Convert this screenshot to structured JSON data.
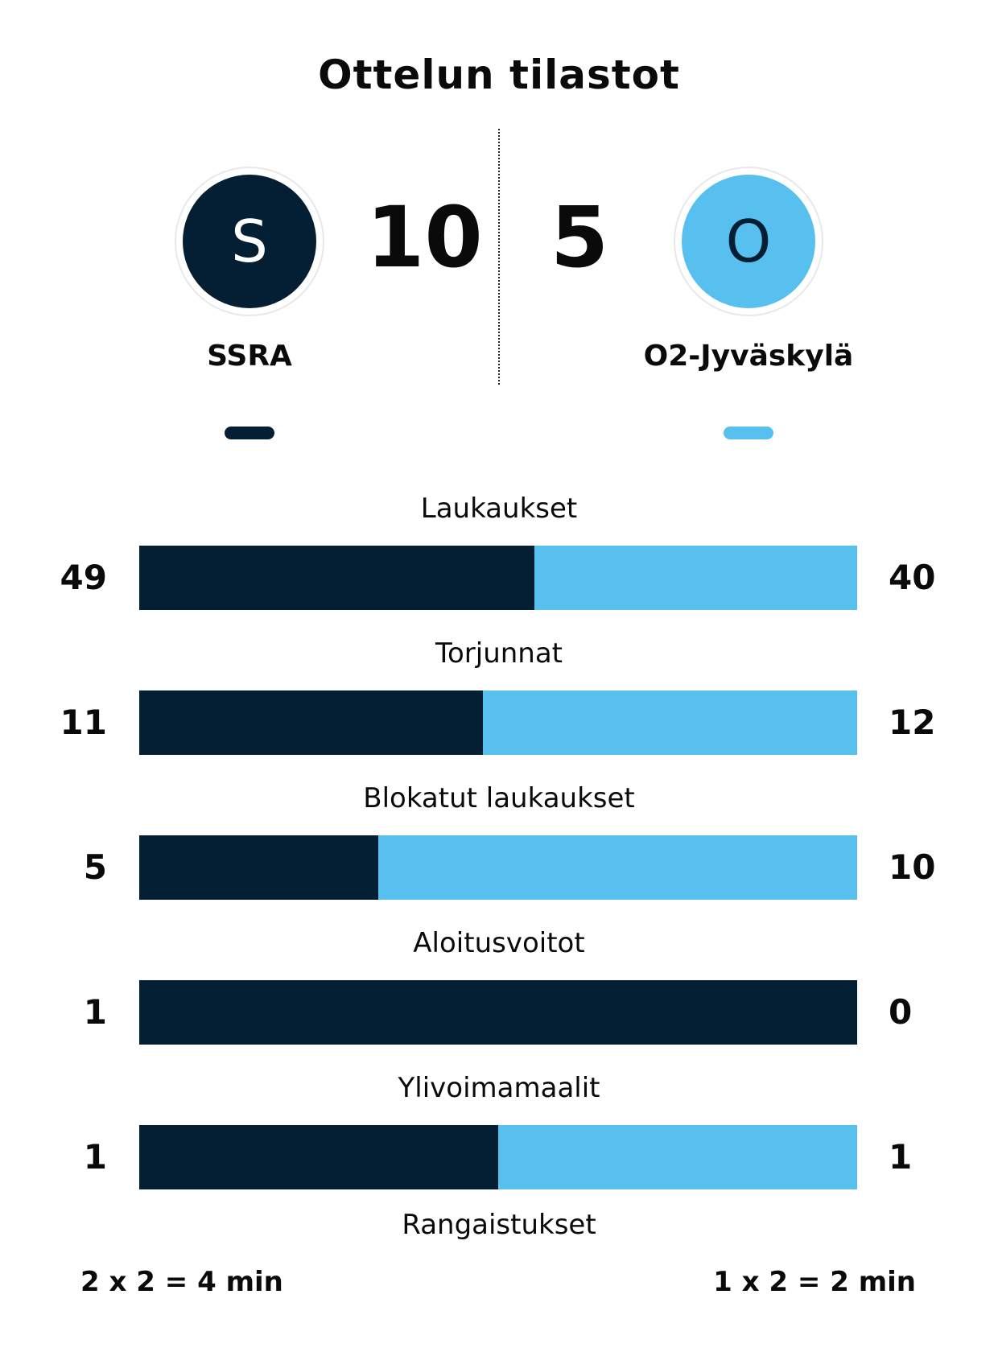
{
  "title": "Ottelun tilastot",
  "colors": {
    "home": "#041f33",
    "away": "#57c0ef",
    "home_logo_text": "#ffffff",
    "away_logo_text": "#041f33"
  },
  "home": {
    "logo_letter": "S",
    "score": "10",
    "name": "SSRA"
  },
  "away": {
    "logo_letter": "O",
    "score": "5",
    "name": "O2-Jyväskylä"
  },
  "stats": [
    {
      "label": "Laukaukset",
      "home": 49,
      "away": 40
    },
    {
      "label": "Torjunnat",
      "home": 11,
      "away": 12
    },
    {
      "label": "Blokatut laukaukset",
      "home": 5,
      "away": 10
    },
    {
      "label": "Aloitusvoitot",
      "home": 1,
      "away": 0
    },
    {
      "label": "Ylivoimamaalit",
      "home": 1,
      "away": 1
    }
  ],
  "penalties": {
    "label": "Rangaistukset",
    "home": "2 x 2 = 4 min",
    "away": "1 x 2 = 2 min"
  }
}
